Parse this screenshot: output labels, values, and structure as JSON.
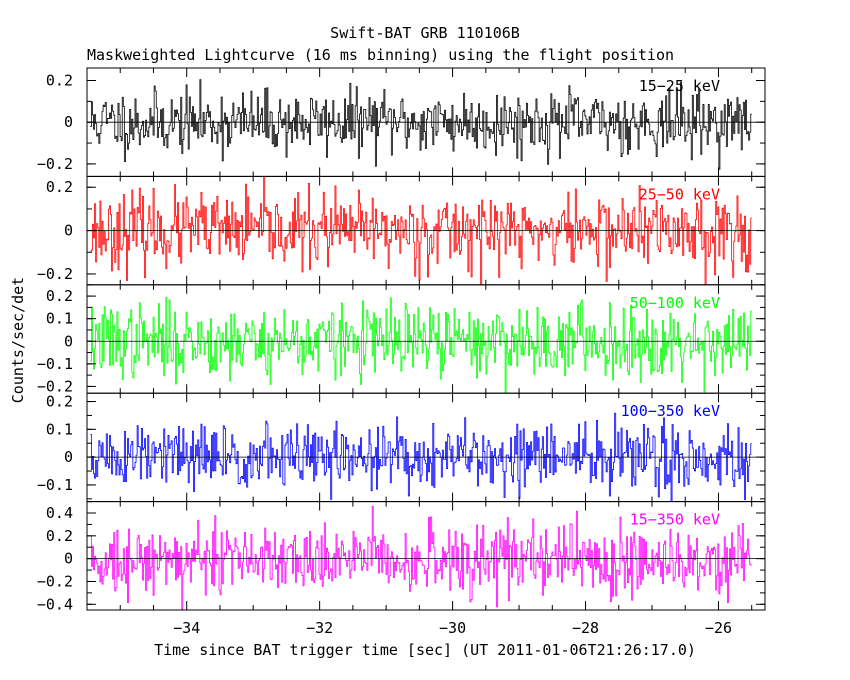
{
  "chart_data": {
    "type": "line",
    "title": "Swift-BAT GRB 110106B",
    "subtitle": "Maskweighted Lightcurve (16 ms binning) using the flight position",
    "xlabel": "Time since BAT trigger time [sec] (UT 2011-01-06T21:26:17.0)",
    "ylabel": "Counts/sec/det",
    "xlim": [
      -35.5,
      -25.3
    ],
    "x_range": [
      -35.45,
      -25.5
    ],
    "x_ticks": [
      -34,
      -32,
      -30,
      -28,
      -26
    ],
    "x_tick_labels": [
      "−34",
      "−32",
      "−30",
      "−28",
      "−26"
    ],
    "binning_sec": 0.016,
    "panels": [
      {
        "name": "15-25 keV",
        "label": "15−25 keV",
        "color": "#000000",
        "ylim": [
          -0.26,
          0.26
        ],
        "yticks": [
          -0.2,
          0,
          0.2
        ],
        "ytick_labels": [
          "−0.2",
          "0",
          "0.2"
        ],
        "noise_sigma": 0.075,
        "seed": 11
      },
      {
        "name": "25-50 keV",
        "label": "25−50 keV",
        "color": "#ff0000",
        "ylim": [
          -0.25,
          0.25
        ],
        "yticks": [
          -0.2,
          0,
          0.2
        ],
        "ytick_labels": [
          "−0.2",
          "0",
          "0.2"
        ],
        "noise_sigma": 0.085,
        "seed": 23
      },
      {
        "name": "50-100 keV",
        "label": "50−100 keV",
        "color": "#00ff00",
        "ylim": [
          -0.23,
          0.25
        ],
        "yticks": [
          -0.2,
          -0.1,
          0,
          0.1,
          0.2
        ],
        "ytick_labels": [
          "−0.2",
          "−0.1",
          "0",
          "0.1",
          "0.2"
        ],
        "noise_sigma": 0.08,
        "seed": 37
      },
      {
        "name": "100-350 keV",
        "label": "100−350 keV",
        "color": "#0000ff",
        "ylim": [
          -0.16,
          0.23
        ],
        "yticks": [
          -0.1,
          0,
          0.1,
          0.2
        ],
        "ytick_labels": [
          "−0.1",
          "0",
          "0.1",
          "0.2"
        ],
        "noise_sigma": 0.06,
        "seed": 51
      },
      {
        "name": "15-350 keV",
        "label": "15−350 keV",
        "color": "#ff00ff",
        "ylim": [
          -0.45,
          0.5
        ],
        "yticks": [
          -0.4,
          -0.2,
          0,
          0.2,
          0.4
        ],
        "ytick_labels": [
          "−0.4",
          "−0.2",
          "0",
          "0.2",
          "0.4"
        ],
        "noise_sigma": 0.15,
        "seed": 73
      }
    ]
  }
}
